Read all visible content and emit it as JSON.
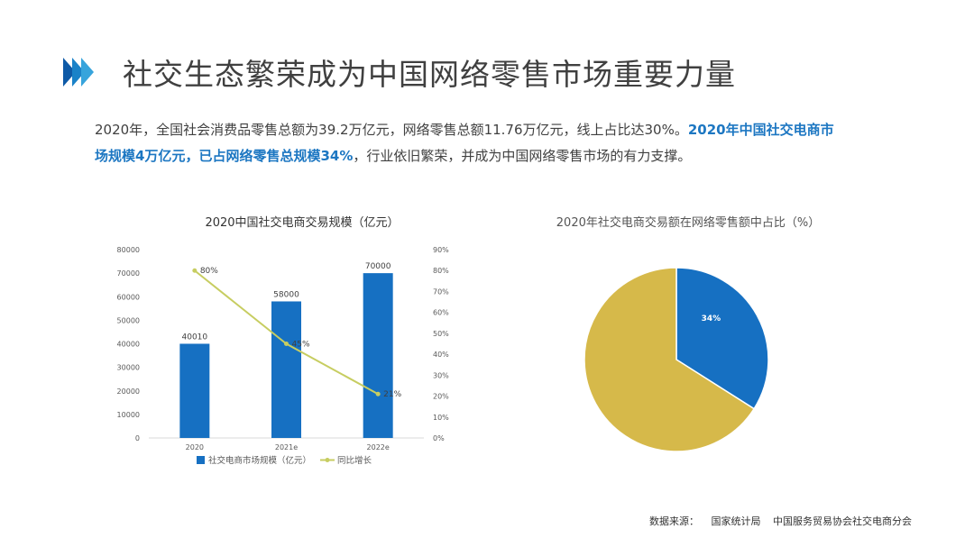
{
  "header": {
    "title": "社交生态繁荣成为中国网络零售市场重要力量"
  },
  "intro": {
    "part1": "2020年，全国社会消费品零售总额为39.2万亿元，网络零售总额11.76万亿元，线上占比达30%。",
    "highlight": "2020年中国社交电商市场规模4万亿元，已占网络零售总规模34%",
    "part2": "，行业依旧繁荣，并成为中国网络零售市场的有力支撑。"
  },
  "colors": {
    "bar": "#1670c2",
    "line": "#c7cd61",
    "pie_share": "#1670c2",
    "pie_rest": "#d6b94a",
    "accent_text": "#1d77c2"
  },
  "chart_data": [
    {
      "type": "bar",
      "title": "2020中国社交电商交易规模（亿元）",
      "categories": [
        "2020",
        "2021e",
        "2022e"
      ],
      "series": [
        {
          "name": "社交电商市场规模（亿元）",
          "type": "bar",
          "axis": "left",
          "values": [
            40010,
            58000,
            70000
          ],
          "labels": [
            "40010",
            "58000",
            "70000"
          ]
        },
        {
          "name": "同比增长",
          "type": "line",
          "axis": "right",
          "values": [
            80,
            45,
            21
          ],
          "labels": [
            "80%",
            "45%",
            "21%"
          ]
        }
      ],
      "ylim": [
        0,
        80000
      ],
      "yticks": [
        "0",
        "10000",
        "20000",
        "30000",
        "40000",
        "50000",
        "60000",
        "70000",
        "80000"
      ],
      "y2lim": [
        0,
        90
      ],
      "y2ticks": [
        "0%",
        "10%",
        "20%",
        "30%",
        "40%",
        "50%",
        "60%",
        "70%",
        "80%",
        "90%"
      ],
      "legend_position": "bottom",
      "grid": false
    },
    {
      "type": "pie",
      "title": "2020年社交电商交易额在网络零售额中占比（%）",
      "slices": [
        {
          "value": 34,
          "label": "34%"
        },
        {
          "value": 66,
          "label": ""
        }
      ]
    }
  ],
  "source": {
    "label": "数据来源：",
    "items": [
      "国家统计局",
      "中国服务贸易协会社交电商分会"
    ]
  }
}
